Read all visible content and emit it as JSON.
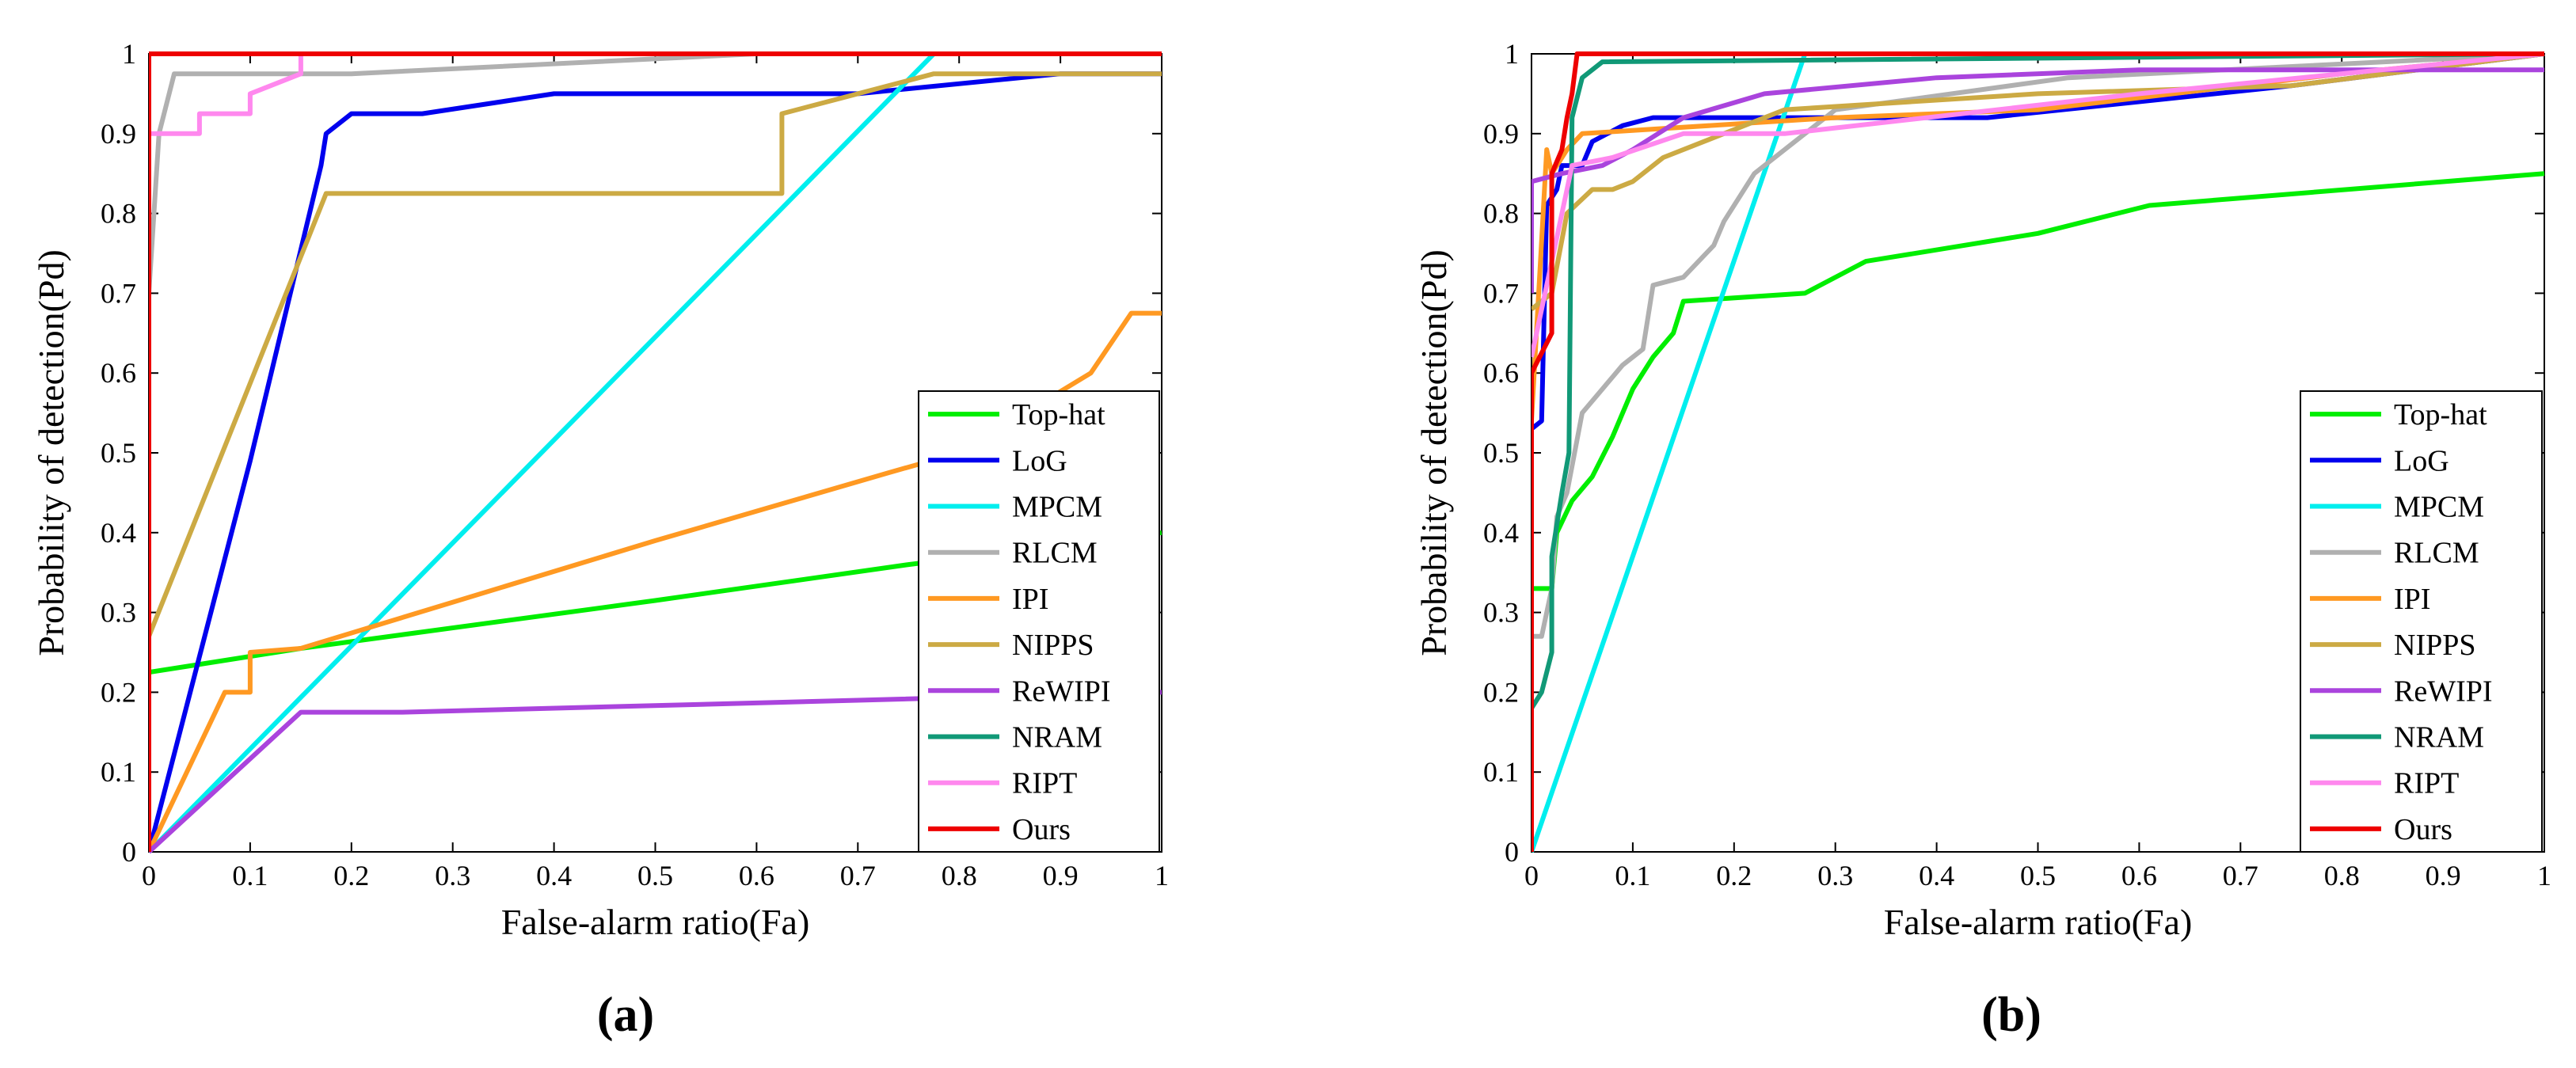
{
  "chart_data": [
    {
      "type": "line",
      "panel_label": "(a)",
      "title": "",
      "xlabel": "False-alarm ratio(Fa)",
      "ylabel": "Probability of detection(Pd)",
      "xlim": [
        0,
        1
      ],
      "ylim": [
        0,
        1
      ],
      "xticks": [
        "0",
        "0.1",
        "0.2",
        "0.3",
        "0.4",
        "0.5",
        "0.6",
        "0.7",
        "0.8",
        "0.9",
        "1"
      ],
      "yticks": [
        "0",
        "0.1",
        "0.2",
        "0.3",
        "0.4",
        "0.5",
        "0.6",
        "0.7",
        "0.8",
        "0.9",
        "1"
      ],
      "grid": false,
      "legend_position": "bottom-right",
      "series": [
        {
          "name": "Top-hat",
          "color": "#00ee00",
          "points": [
            [
              0,
              0.225
            ],
            [
              0.15,
              0.255
            ],
            [
              0.5,
              0.315
            ],
            [
              0.75,
              0.36
            ],
            [
              1,
              0.4
            ]
          ]
        },
        {
          "name": "LoG",
          "color": "#0000ee",
          "points": [
            [
              0,
              0
            ],
            [
              0.1,
              0.49
            ],
            [
              0.17,
              0.86
            ],
            [
              0.175,
              0.9
            ],
            [
              0.2,
              0.925
            ],
            [
              0.27,
              0.925
            ],
            [
              0.4,
              0.95
            ],
            [
              0.7,
              0.95
            ],
            [
              0.9,
              0.975
            ],
            [
              1,
              0.975
            ]
          ]
        },
        {
          "name": "MPCM",
          "color": "#00eeee",
          "points": [
            [
              0,
              0
            ],
            [
              0.775,
              1
            ]
          ]
        },
        {
          "name": "RLCM",
          "color": "#b0b0b0",
          "points": [
            [
              0,
              0.7
            ],
            [
              0.01,
              0.9
            ],
            [
              0.025,
              0.975
            ],
            [
              0.2,
              0.975
            ],
            [
              0.6,
              1
            ],
            [
              1,
              1
            ]
          ]
        },
        {
          "name": "IPI",
          "color": "#ff9922",
          "points": [
            [
              0,
              0
            ],
            [
              0.075,
              0.2
            ],
            [
              0.1,
              0.2
            ],
            [
              0.1,
              0.25
            ],
            [
              0.15,
              0.255
            ],
            [
              0.5,
              0.39
            ],
            [
              0.73,
              0.475
            ],
            [
              0.8,
              0.5
            ],
            [
              0.93,
              0.6
            ],
            [
              0.97,
              0.675
            ],
            [
              1,
              0.675
            ]
          ]
        },
        {
          "name": "NIPPS",
          "color": "#ccaa44",
          "points": [
            [
              0,
              0.27
            ],
            [
              0.175,
              0.825
            ],
            [
              0.625,
              0.825
            ],
            [
              0.625,
              0.925
            ],
            [
              0.775,
              0.975
            ],
            [
              1,
              0.975
            ]
          ]
        },
        {
          "name": "ReWIPI",
          "color": "#aa44dd",
          "points": [
            [
              0,
              0
            ],
            [
              0.15,
              0.175
            ],
            [
              0.25,
              0.175
            ],
            [
              0.7,
              0.19
            ],
            [
              1,
              0.2
            ]
          ]
        },
        {
          "name": "NRAM",
          "color": "#119977",
          "points": []
        },
        {
          "name": "RIPT",
          "color": "#ff88ee",
          "points": [
            [
              0,
              0.9
            ],
            [
              0.05,
              0.9
            ],
            [
              0.05,
              0.925
            ],
            [
              0.1,
              0.925
            ],
            [
              0.1,
              0.95
            ],
            [
              0.15,
              0.975
            ],
            [
              0.15,
              1
            ],
            [
              0.2,
              1
            ]
          ]
        },
        {
          "name": "Ours",
          "color": "#ee0000",
          "points": [
            [
              0,
              0
            ],
            [
              0,
              1
            ],
            [
              1,
              1
            ]
          ]
        }
      ]
    },
    {
      "type": "line",
      "panel_label": "(b)",
      "title": "",
      "xlabel": "False-alarm ratio(Fa)",
      "ylabel": "Probability of detection(Pd)",
      "xlim": [
        0,
        1
      ],
      "ylim": [
        0,
        1
      ],
      "xticks": [
        "0",
        "0.1",
        "0.2",
        "0.3",
        "0.4",
        "0.5",
        "0.6",
        "0.7",
        "0.8",
        "0.9",
        "1"
      ],
      "yticks": [
        "0",
        "0.1",
        "0.2",
        "0.3",
        "0.4",
        "0.5",
        "0.6",
        "0.7",
        "0.8",
        "0.9",
        "1"
      ],
      "grid": false,
      "legend_position": "bottom-right",
      "series": [
        {
          "name": "Top-hat",
          "color": "#00ee00",
          "points": [
            [
              0,
              0.33
            ],
            [
              0.02,
              0.33
            ],
            [
              0.025,
              0.4
            ],
            [
              0.04,
              0.44
            ],
            [
              0.06,
              0.47
            ],
            [
              0.08,
              0.52
            ],
            [
              0.1,
              0.58
            ],
            [
              0.12,
              0.62
            ],
            [
              0.14,
              0.65
            ],
            [
              0.15,
              0.69
            ],
            [
              0.27,
              0.7
            ],
            [
              0.33,
              0.74
            ],
            [
              0.5,
              0.775
            ],
            [
              0.61,
              0.81
            ],
            [
              1,
              0.85
            ]
          ]
        },
        {
          "name": "LoG",
          "color": "#0000ee",
          "points": [
            [
              0,
              0.53
            ],
            [
              0.01,
              0.54
            ],
            [
              0.015,
              0.81
            ],
            [
              0.025,
              0.83
            ],
            [
              0.03,
              0.86
            ],
            [
              0.05,
              0.86
            ],
            [
              0.06,
              0.89
            ],
            [
              0.09,
              0.91
            ],
            [
              0.12,
              0.92
            ],
            [
              0.45,
              0.92
            ],
            [
              0.75,
              0.96
            ],
            [
              1,
              1
            ]
          ]
        },
        {
          "name": "MPCM",
          "color": "#00eeee",
          "points": [
            [
              0,
              0
            ],
            [
              0.27,
              1
            ]
          ]
        },
        {
          "name": "RLCM",
          "color": "#b0b0b0",
          "points": [
            [
              0,
              0.27
            ],
            [
              0.01,
              0.27
            ],
            [
              0.02,
              0.33
            ],
            [
              0.025,
              0.42
            ],
            [
              0.035,
              0.45
            ],
            [
              0.05,
              0.55
            ],
            [
              0.07,
              0.58
            ],
            [
              0.09,
              0.61
            ],
            [
              0.11,
              0.63
            ],
            [
              0.12,
              0.71
            ],
            [
              0.15,
              0.72
            ],
            [
              0.18,
              0.76
            ],
            [
              0.19,
              0.79
            ],
            [
              0.22,
              0.85
            ],
            [
              0.26,
              0.89
            ],
            [
              0.3,
              0.93
            ],
            [
              0.53,
              0.97
            ],
            [
              1,
              1
            ]
          ]
        },
        {
          "name": "IPI",
          "color": "#ff9922",
          "points": [
            [
              0,
              0.54
            ],
            [
              0.015,
              0.88
            ],
            [
              0.02,
              0.85
            ],
            [
              0.035,
              0.88
            ],
            [
              0.05,
              0.9
            ],
            [
              0.3,
              0.92
            ],
            [
              0.5,
              0.93
            ],
            [
              0.8,
              0.975
            ],
            [
              1,
              1
            ]
          ]
        },
        {
          "name": "NIPPS",
          "color": "#ccaa44",
          "points": [
            [
              0,
              0.68
            ],
            [
              0.02,
              0.7
            ],
            [
              0.035,
              0.8
            ],
            [
              0.06,
              0.83
            ],
            [
              0.08,
              0.83
            ],
            [
              0.1,
              0.84
            ],
            [
              0.13,
              0.87
            ],
            [
              0.25,
              0.93
            ],
            [
              0.5,
              0.95
            ],
            [
              0.75,
              0.96
            ],
            [
              1,
              1
            ]
          ]
        },
        {
          "name": "ReWIPI",
          "color": "#aa44dd",
          "points": [
            [
              0,
              0.7
            ],
            [
              0,
              0.84
            ],
            [
              0.03,
              0.85
            ],
            [
              0.07,
              0.86
            ],
            [
              0.1,
              0.88
            ],
            [
              0.15,
              0.92
            ],
            [
              0.23,
              0.95
            ],
            [
              0.4,
              0.97
            ],
            [
              0.6,
              0.98
            ],
            [
              1,
              0.98
            ]
          ]
        },
        {
          "name": "NRAM",
          "color": "#119977",
          "points": [
            [
              0,
              0.18
            ],
            [
              0.01,
              0.2
            ],
            [
              0.02,
              0.25
            ],
            [
              0.02,
              0.37
            ],
            [
              0.03,
              0.45
            ],
            [
              0.037,
              0.5
            ],
            [
              0.04,
              0.92
            ],
            [
              0.05,
              0.97
            ],
            [
              0.07,
              0.99
            ],
            [
              1,
              1
            ]
          ]
        },
        {
          "name": "RIPT",
          "color": "#ff88ee",
          "points": [
            [
              0,
              0.62
            ],
            [
              0.02,
              0.74
            ],
            [
              0.04,
              0.86
            ],
            [
              0.08,
              0.87
            ],
            [
              0.15,
              0.9
            ],
            [
              0.25,
              0.9
            ],
            [
              0.6,
              0.95
            ],
            [
              1,
              1
            ]
          ]
        },
        {
          "name": "Ours",
          "color": "#ee0000",
          "points": [
            [
              0,
              0
            ],
            [
              0,
              0.6
            ],
            [
              0.02,
              0.65
            ],
            [
              0.02,
              0.85
            ],
            [
              0.03,
              0.88
            ],
            [
              0.035,
              0.92
            ],
            [
              0.04,
              0.95
            ],
            [
              0.045,
              1
            ],
            [
              1,
              1
            ]
          ]
        }
      ]
    }
  ]
}
